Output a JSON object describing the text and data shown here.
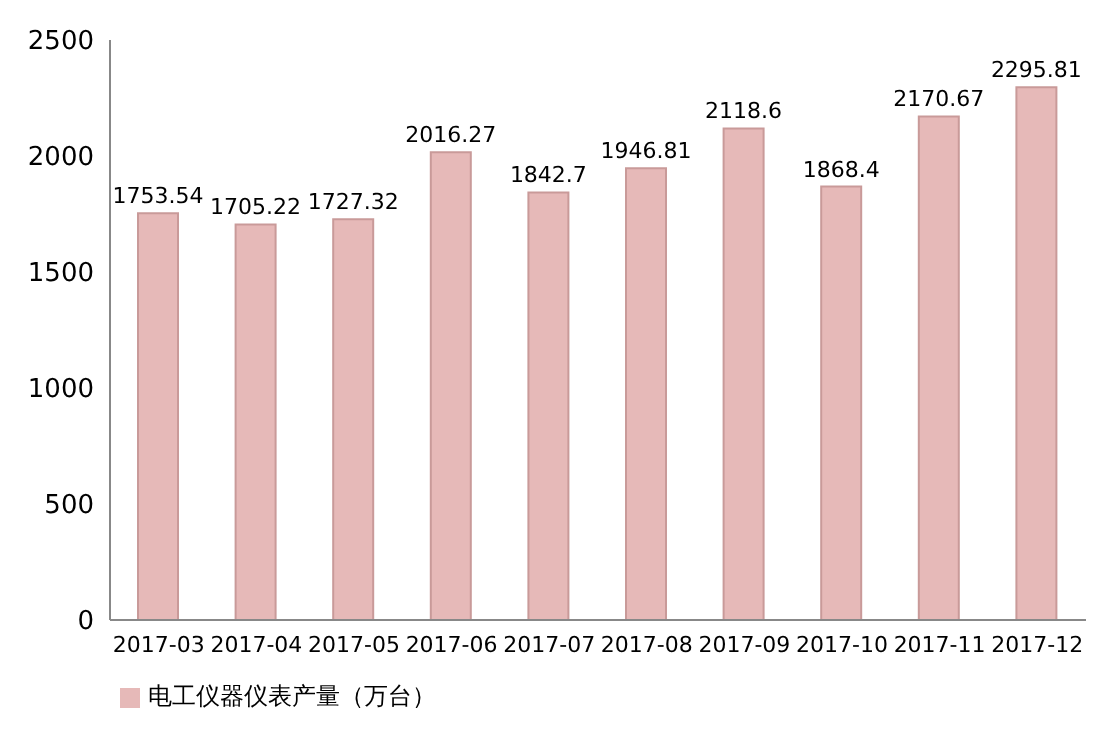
{
  "chart_data": {
    "type": "bar",
    "categories": [
      "2017-03",
      "2017-04",
      "2017-05",
      "2017-06",
      "2017-07",
      "2017-08",
      "2017-09",
      "2017-10",
      "2017-11",
      "2017-12"
    ],
    "series": [
      {
        "name": "电工仪器仪表产量（万台）",
        "color": "#e6b9b8",
        "values": [
          1753.54,
          1705.22,
          1727.32,
          2016.27,
          1842.7,
          1946.81,
          2118.6,
          1868.4,
          2170.67,
          2295.81
        ]
      }
    ],
    "ylim": [
      0,
      2500
    ],
    "yticks": [
      0,
      500,
      1000,
      1500,
      2000,
      2500
    ],
    "grid": false,
    "legend": "bottom left",
    "data_labels": true
  }
}
